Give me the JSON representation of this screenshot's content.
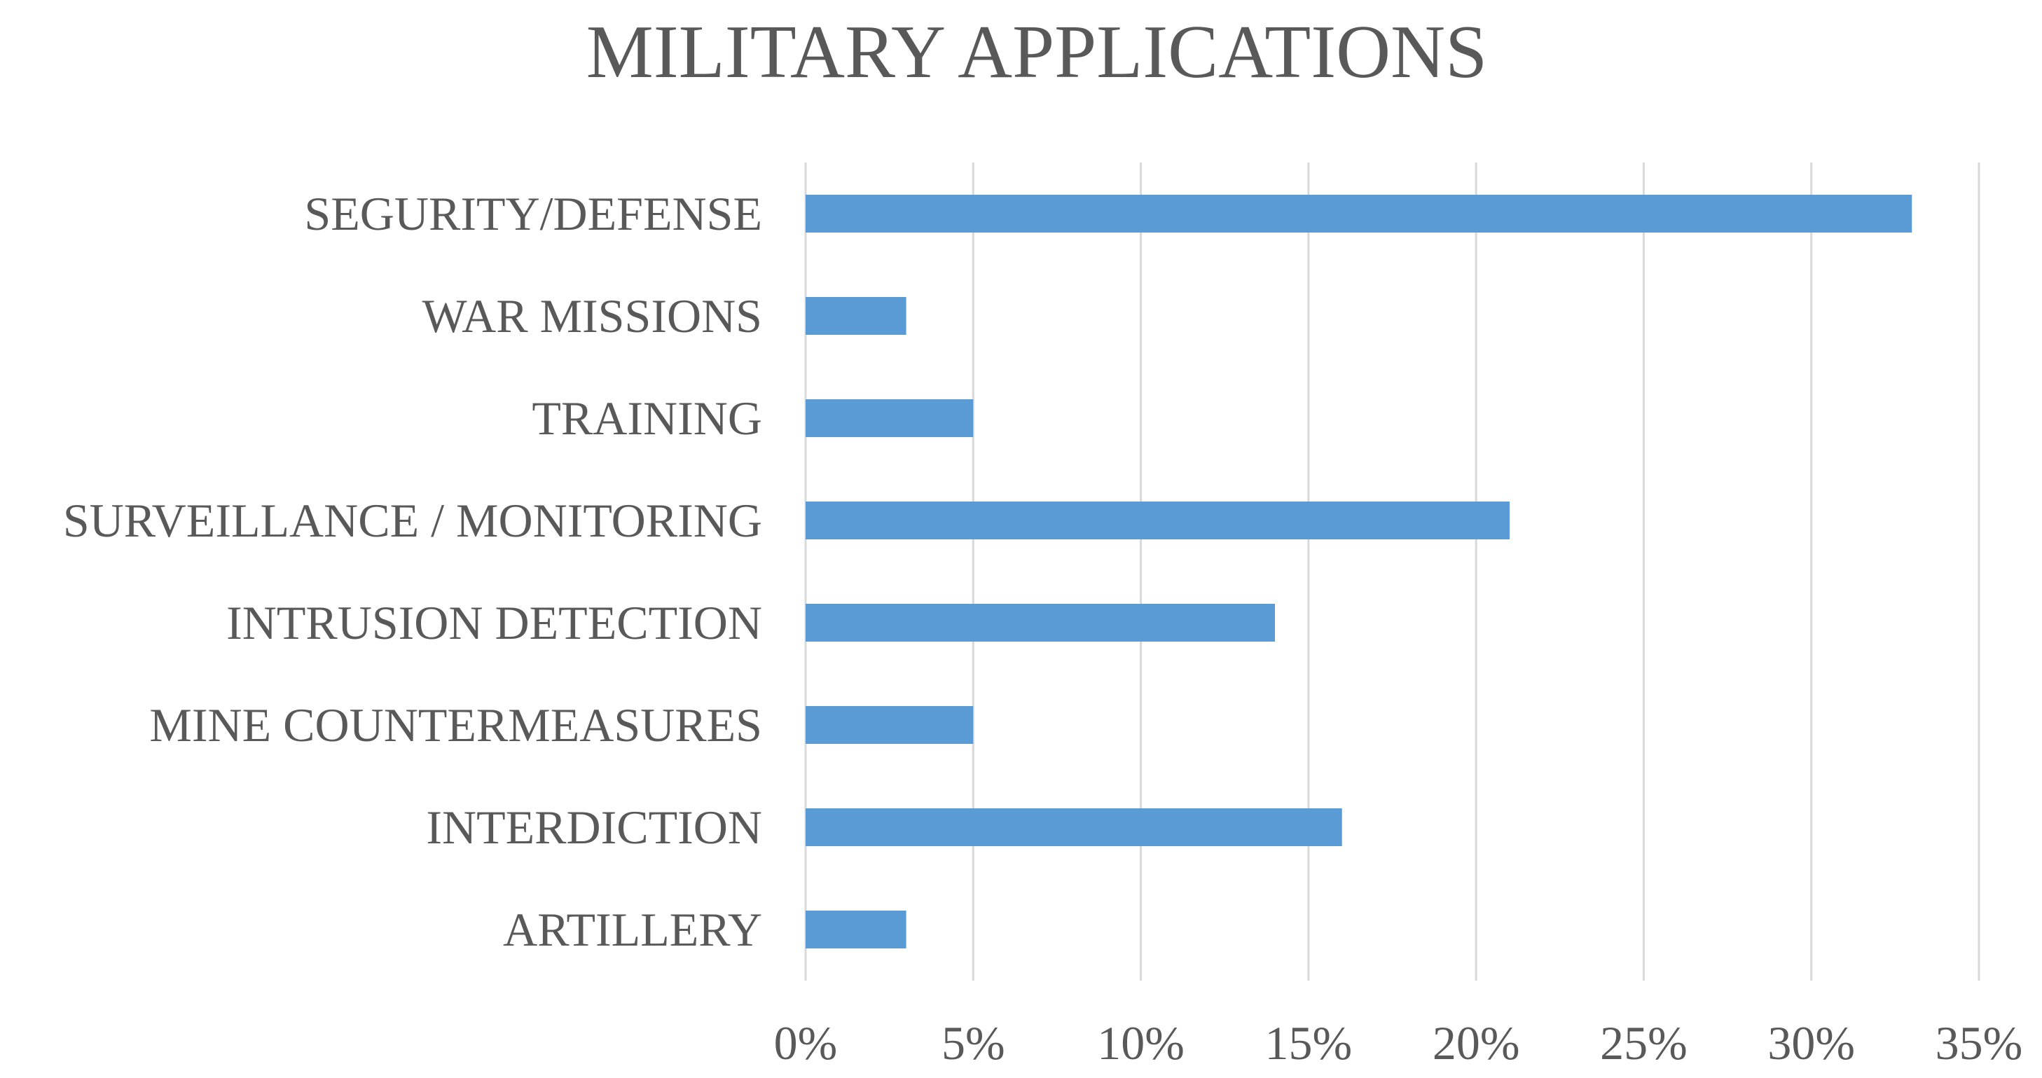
{
  "chart_data": {
    "type": "bar",
    "orientation": "horizontal",
    "title": "MILITARY APPLICATIONS",
    "xlabel": "",
    "ylabel": "",
    "categories": [
      "SEGURITY/DEFENSE",
      "WAR MISSIONS",
      "TRAINING",
      "SURVEILLANCE / MONITORING",
      "INTRUSION DETECTION",
      "MINE COUNTERMEASURES",
      "INTERDICTION",
      "ARTILLERY"
    ],
    "values": [
      33,
      3,
      5,
      21,
      14,
      5,
      16,
      3
    ],
    "value_unit": "%",
    "xlim": [
      0,
      35
    ],
    "xticks": [
      0,
      5,
      10,
      15,
      20,
      25,
      30,
      35
    ],
    "xtick_labels": [
      "0%",
      "5%",
      "10%",
      "15%",
      "20%",
      "25%",
      "30%",
      "35%"
    ],
    "grid": "vertical",
    "legend": "none",
    "bar_color": "#5b9bd5",
    "grid_color": "#d9d9d9",
    "text_color": "#595959"
  }
}
